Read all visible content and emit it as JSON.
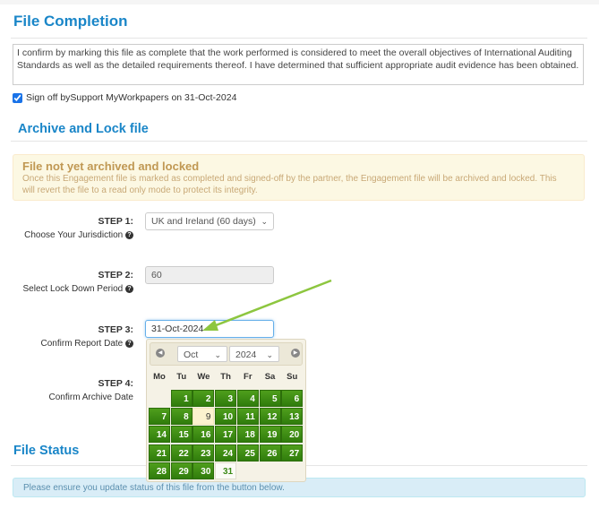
{
  "file_completion": {
    "title": "File Completion",
    "statement": "I confirm by marking this file as complete that the work performed is considered to meet the overall objectives of International Auditing Standards as well as the detailed requirements thereof. I have determined that sufficient appropriate audit evidence has been obtained.",
    "signoff_label": "Sign off bySupport MyWorkpapers on 31-Oct-2024",
    "signoff_checked": true
  },
  "archive": {
    "title": "Archive and Lock file",
    "alert_title": "File not yet archived and locked",
    "alert_text": "Once this Engagement file is marked as completed and signed-off by the partner, the Engagement file will be archived and locked. This will revert the file to a read only mode to protect its integrity.",
    "steps": [
      {
        "label": "STEP 1:",
        "desc": "Choose Your Jurisdiction",
        "value": "UK and Ireland (60 days)"
      },
      {
        "label": "STEP 2:",
        "desc": "Select Lock Down Period",
        "value": "60"
      },
      {
        "label": "STEP 3:",
        "desc": "Confirm Report Date",
        "value": "31-Oct-2024"
      },
      {
        "label": "STEP 4:",
        "desc": "Confirm Archive Date"
      }
    ]
  },
  "datepicker": {
    "month": "Oct",
    "year": "2024",
    "weekdays": [
      "Mo",
      "Tu",
      "We",
      "Th",
      "Fr",
      "Sa",
      "Su"
    ],
    "first_weekday_index": 1,
    "days_in_month": 31,
    "today": 9,
    "selected": 31,
    "cell_color": "#3f8d14",
    "prev_icon": "circle-triangle-left",
    "next_icon": "circle-triangle-right"
  },
  "annotation": {
    "arrow_color": "#8dc63f"
  },
  "file_status": {
    "title": "File Status",
    "info": "Please ensure you update status of this file from the button below."
  }
}
